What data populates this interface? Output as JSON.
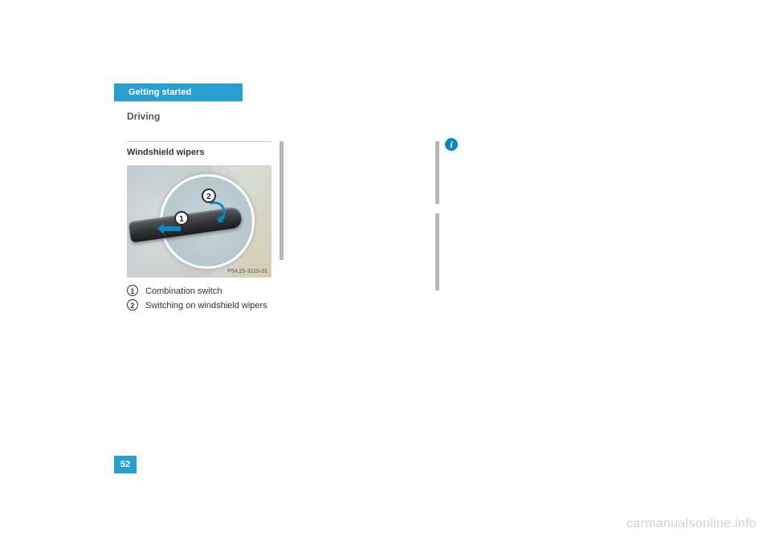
{
  "tab_label": "Getting started",
  "section_title": "Driving",
  "subhead": "Windshield wipers",
  "figure": {
    "caption": "P54.25-3115-31",
    "callouts": [
      "1",
      "2"
    ]
  },
  "legend": [
    {
      "num": "1",
      "text": "Combination switch"
    },
    {
      "num": "2",
      "text": "Switching on windshield wipers"
    }
  ],
  "page_number": "52",
  "watermark": "carmanualsonline.info",
  "colors": {
    "accent": "#299ed0",
    "info": "#0b88c4",
    "bar": "#b7b7b7",
    "text": "#333333",
    "bg": "#ffffff"
  }
}
